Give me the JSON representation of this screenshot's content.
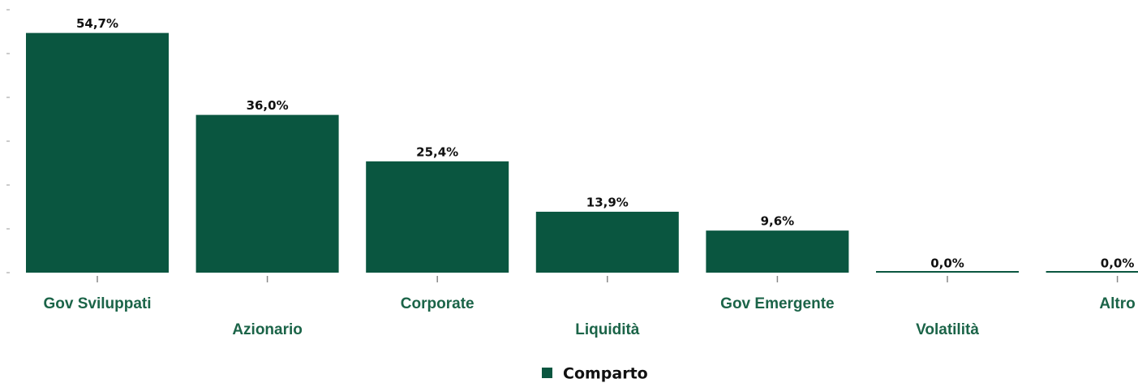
{
  "chart_data": {
    "type": "bar",
    "categories": [
      "Gov Sviluppati",
      "Azionario",
      "Corporate",
      "Liquidità",
      "Gov Emergente",
      "Volatilità",
      "Altro"
    ],
    "series": [
      {
        "name": "Comparto",
        "color": "#0a5640",
        "values": [
          54.7,
          36.0,
          25.4,
          13.9,
          9.6,
          0.0,
          0.0
        ],
        "value_labels": [
          "54,7%",
          "36,0%",
          "25,4%",
          "13,9%",
          "9,6%",
          "0,0%",
          "0,0%"
        ]
      }
    ],
    "ylim": [
      0,
      60
    ],
    "yticks": [
      0,
      10,
      20,
      30,
      40,
      50,
      60
    ],
    "legend": "bottom"
  }
}
